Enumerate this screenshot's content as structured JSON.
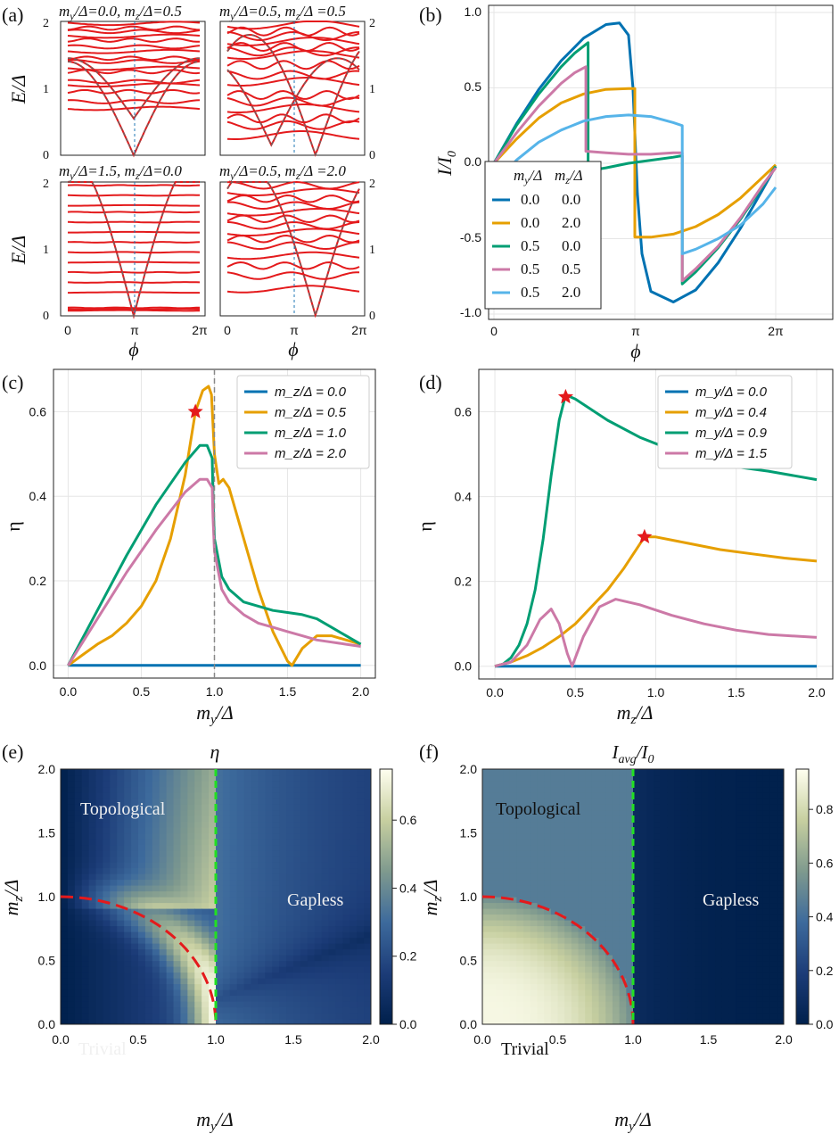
{
  "colors": {
    "c0": "#0072b2",
    "c1": "#e69f00",
    "c2": "#009e73",
    "c3": "#cc79a7",
    "c4": "#56b4e9",
    "red": "#e41a1c",
    "gray_dash": "#888888",
    "blue_dash": "#1f77b4",
    "green_dash": "#22e022"
  },
  "panels": {
    "a": {
      "letter": "(a)",
      "subplots": [
        {
          "title": "m_y/Δ=0.0, m_z/Δ=0.5"
        },
        {
          "title": "m_y/Δ=0.5, m_z/Δ =0.5"
        },
        {
          "title": "m_y/Δ=1.5, m_z/Δ=0.0"
        },
        {
          "title": "m_y/Δ=0.5, m_z/Δ =2.0"
        }
      ],
      "ylabel": "E/Δ",
      "xlabel": "ϕ",
      "xticks": [
        "0",
        "π",
        "2π"
      ],
      "yticks": [
        "0",
        "1",
        "2"
      ]
    },
    "b": {
      "letter": "(b)",
      "ylabel": "I/I0",
      "xlabel": "ϕ",
      "xticks": [
        "0",
        "π",
        "2π"
      ],
      "yticks": [
        "-1.0",
        "-0.5",
        "0.0",
        "0.5",
        "1.0"
      ],
      "legend_header": [
        "m_y/Δ",
        "m_z/Δ"
      ],
      "legend_rows": [
        [
          "0.0",
          "0.0"
        ],
        [
          "0.0",
          "2.0"
        ],
        [
          "0.5",
          "0.0"
        ],
        [
          "0.5",
          "0.5"
        ],
        [
          "0.5",
          "2.0"
        ]
      ]
    },
    "c": {
      "letter": "(c)",
      "ylabel": "η",
      "xlabel": "m_y/Δ",
      "xticks": [
        "0.0",
        "0.5",
        "1.0",
        "1.5",
        "2.0"
      ],
      "yticks": [
        "0.0",
        "0.2",
        "0.4",
        "0.6"
      ],
      "legend": [
        "m_z/Δ = 0.0",
        "m_z/Δ = 0.5",
        "m_z/Δ = 1.0",
        "m_z/Δ = 2.0"
      ]
    },
    "d": {
      "letter": "(d)",
      "ylabel": "η",
      "xlabel": "m_z/Δ",
      "xticks": [
        "0.0",
        "0.5",
        "1.0",
        "1.5",
        "2.0"
      ],
      "yticks": [
        "0.0",
        "0.2",
        "0.4",
        "0.6"
      ],
      "legend": [
        "m_y/Δ = 0.0",
        "m_y/Δ = 0.4",
        "m_y/Δ = 0.9",
        "m_y/Δ = 1.5"
      ]
    },
    "e": {
      "letter": "(e)",
      "title": "η",
      "xlabel": "m_y/Δ",
      "ylabel": "m_z/Δ",
      "xticks": [
        "0.0",
        "0.5",
        "1.0",
        "1.5",
        "2.0"
      ],
      "yticks": [
        "0.0",
        "0.5",
        "1.0",
        "1.5",
        "2.0"
      ],
      "cbar_ticks": [
        "0.0",
        "0.2",
        "0.4",
        "0.6"
      ],
      "regions": [
        "Topological",
        "Gapless",
        "Trivial"
      ]
    },
    "f": {
      "letter": "(f)",
      "title": "I_avg/I_0",
      "xlabel": "m_y/Δ",
      "ylabel": "m_z/Δ",
      "xticks": [
        "0.0",
        "0.5",
        "1.0",
        "1.5",
        "2.0"
      ],
      "yticks": [
        "0.0",
        "0.5",
        "1.0",
        "1.5",
        "2.0"
      ],
      "cbar_ticks": [
        "0.0",
        "0.2",
        "0.4",
        "0.6",
        "0.8"
      ],
      "regions": [
        "Topological",
        "Gapless",
        "Trivial"
      ]
    }
  },
  "chart_data": [
    {
      "type": "line",
      "panel": "b",
      "xlim": [
        0,
        6.2832
      ],
      "ylim": [
        -1.0,
        1.0
      ],
      "series": [
        {
          "name": "m_y/Δ 0.0, m_z/Δ 0.0",
          "color": "c0",
          "x": [
            0,
            0.5,
            1.0,
            1.5,
            2.0,
            2.5,
            2.8,
            3.0,
            3.1,
            3.2,
            3.3,
            3.5,
            4.0,
            4.5,
            5.0,
            5.5,
            6.0,
            6.2832
          ],
          "y": [
            0,
            0.26,
            0.49,
            0.68,
            0.83,
            0.92,
            0.93,
            0.85,
            0.5,
            -0.2,
            -0.6,
            -0.85,
            -0.92,
            -0.84,
            -0.66,
            -0.43,
            -0.17,
            -0.02
          ]
        },
        {
          "name": "m_y/Δ 0.0, m_z/Δ 2.0",
          "color": "c1",
          "x": [
            0,
            0.5,
            1.0,
            1.5,
            2.0,
            2.5,
            3.0,
            3.1416,
            3.1417,
            3.5,
            4.0,
            4.5,
            5.0,
            5.5,
            6.0,
            6.2832
          ],
          "y": [
            0,
            0.16,
            0.3,
            0.4,
            0.46,
            0.49,
            0.495,
            0.495,
            -0.49,
            -0.49,
            -0.47,
            -0.42,
            -0.34,
            -0.23,
            -0.09,
            -0.01
          ]
        },
        {
          "name": "m_y/Δ 0.5, m_z/Δ 0.0",
          "color": "c2",
          "x": [
            0,
            0.5,
            1.0,
            1.5,
            1.8,
            2.1,
            2.1001,
            2.5,
            3.0,
            3.5,
            4.0,
            4.2,
            4.2001,
            4.5,
            5.0,
            5.5,
            6.0,
            6.2832
          ],
          "y": [
            0,
            0.25,
            0.46,
            0.64,
            0.73,
            0.8,
            -0.05,
            -0.03,
            0.0,
            0.02,
            0.04,
            0.05,
            -0.8,
            -0.72,
            -0.56,
            -0.37,
            -0.15,
            -0.02
          ]
        },
        {
          "name": "m_y/Δ 0.5, m_z/Δ 0.5",
          "color": "c3",
          "x": [
            0,
            0.5,
            1.0,
            1.5,
            1.8,
            2.05,
            2.0501,
            2.5,
            3.0,
            3.5,
            4.0,
            4.2,
            4.2001,
            4.5,
            5.0,
            5.5,
            6.0,
            6.2832
          ],
          "y": [
            0,
            0.2,
            0.38,
            0.53,
            0.6,
            0.64,
            0.08,
            0.07,
            0.06,
            0.06,
            0.07,
            0.07,
            -0.78,
            -0.7,
            -0.55,
            -0.36,
            -0.14,
            -0.03
          ]
        },
        {
          "name": "m_y/Δ 0.5, m_z/Δ 2.0",
          "color": "c4",
          "x": [
            0,
            0.5,
            1.0,
            1.5,
            2.0,
            2.5,
            3.0,
            3.5,
            4.0,
            4.2,
            4.2001,
            4.5,
            5.0,
            5.5,
            6.0,
            6.2832
          ],
          "y": [
            -0.15,
            0.02,
            0.14,
            0.22,
            0.28,
            0.31,
            0.32,
            0.31,
            0.27,
            0.25,
            -0.6,
            -0.57,
            -0.5,
            -0.41,
            -0.27,
            -0.16
          ]
        }
      ]
    },
    {
      "type": "line",
      "panel": "c",
      "xlim": [
        -0.1,
        2.1
      ],
      "ylim": [
        -0.03,
        0.7
      ],
      "series": [
        {
          "name": "m_z/Δ = 0.0",
          "color": "c0",
          "x": [
            0,
            2.0
          ],
          "y": [
            0,
            0
          ]
        },
        {
          "name": "m_z/Δ = 0.5",
          "color": "c1",
          "x": [
            0,
            0.1,
            0.2,
            0.3,
            0.4,
            0.5,
            0.6,
            0.7,
            0.8,
            0.87,
            0.92,
            0.96,
            0.98,
            1.0,
            1.03,
            1.06,
            1.1,
            1.2,
            1.3,
            1.4,
            1.5,
            1.53,
            1.6,
            1.7,
            1.8,
            1.9,
            2.0
          ],
          "y": [
            0,
            0.025,
            0.05,
            0.07,
            0.1,
            0.14,
            0.2,
            0.3,
            0.45,
            0.6,
            0.65,
            0.66,
            0.64,
            0.5,
            0.43,
            0.44,
            0.42,
            0.3,
            0.18,
            0.08,
            0.01,
            0.0,
            0.04,
            0.07,
            0.07,
            0.06,
            0.05
          ]
        },
        {
          "name": "m_z/Δ = 1.0",
          "color": "c2",
          "x": [
            0,
            0.2,
            0.4,
            0.6,
            0.8,
            0.9,
            0.95,
            0.985,
            0.99,
            1.0,
            1.05,
            1.1,
            1.2,
            1.3,
            1.4,
            1.5,
            1.6,
            1.7,
            1.8,
            1.9,
            2.0
          ],
          "y": [
            0,
            0.13,
            0.26,
            0.38,
            0.48,
            0.52,
            0.52,
            0.49,
            0.4,
            0.3,
            0.21,
            0.18,
            0.15,
            0.14,
            0.13,
            0.125,
            0.12,
            0.11,
            0.09,
            0.07,
            0.05
          ]
        },
        {
          "name": "m_z/Δ = 2.0",
          "color": "c3",
          "x": [
            0,
            0.2,
            0.4,
            0.6,
            0.8,
            0.9,
            0.95,
            0.985,
            0.99,
            1.0,
            1.05,
            1.1,
            1.2,
            1.3,
            1.4,
            1.5,
            1.6,
            1.7,
            1.8,
            1.9,
            2.0
          ],
          "y": [
            0,
            0.11,
            0.22,
            0.32,
            0.41,
            0.44,
            0.44,
            0.42,
            0.35,
            0.27,
            0.18,
            0.15,
            0.12,
            0.1,
            0.09,
            0.08,
            0.07,
            0.06,
            0.055,
            0.05,
            0.045
          ]
        }
      ],
      "marker": {
        "x": 0.87,
        "y": 0.6,
        "shape": "star"
      },
      "vline": {
        "x": 1.0,
        "style": "dashed"
      }
    },
    {
      "type": "line",
      "panel": "d",
      "xlim": [
        -0.1,
        2.1
      ],
      "ylim": [
        -0.03,
        0.7
      ],
      "series": [
        {
          "name": "m_y/Δ = 0.0",
          "color": "c0",
          "x": [
            0,
            2.0
          ],
          "y": [
            0,
            0
          ]
        },
        {
          "name": "m_y/Δ = 0.4",
          "color": "c1",
          "x": [
            0,
            0.1,
            0.2,
            0.3,
            0.4,
            0.5,
            0.6,
            0.7,
            0.8,
            0.93,
            1.0,
            1.2,
            1.4,
            1.6,
            1.8,
            2.0
          ],
          "y": [
            0,
            0.01,
            0.025,
            0.045,
            0.07,
            0.1,
            0.14,
            0.18,
            0.23,
            0.305,
            0.305,
            0.29,
            0.275,
            0.265,
            0.255,
            0.248
          ]
        },
        {
          "name": "m_y/Δ = 0.9",
          "color": "c2",
          "x": [
            0,
            0.05,
            0.1,
            0.15,
            0.2,
            0.25,
            0.3,
            0.35,
            0.4,
            0.44,
            0.5,
            0.7,
            0.9,
            1.1,
            1.3,
            1.5,
            1.7,
            2.0
          ],
          "y": [
            0,
            0.005,
            0.02,
            0.05,
            0.1,
            0.18,
            0.3,
            0.45,
            0.58,
            0.64,
            0.63,
            0.58,
            0.54,
            0.51,
            0.49,
            0.47,
            0.46,
            0.44
          ]
        },
        {
          "name": "m_y/Δ = 1.5",
          "color": "c3",
          "x": [
            0,
            0.1,
            0.2,
            0.28,
            0.35,
            0.4,
            0.45,
            0.48,
            0.55,
            0.65,
            0.75,
            0.9,
            1.1,
            1.3,
            1.5,
            1.7,
            2.0
          ],
          "y": [
            0,
            0.01,
            0.05,
            0.11,
            0.135,
            0.1,
            0.03,
            0.0,
            0.07,
            0.14,
            0.158,
            0.145,
            0.12,
            0.1,
            0.085,
            0.075,
            0.068
          ]
        }
      ],
      "markers": [
        {
          "x": 0.44,
          "y": 0.635,
          "shape": "star"
        },
        {
          "x": 0.93,
          "y": 0.305,
          "shape": "star"
        }
      ]
    },
    {
      "type": "heatmap",
      "panel": "e",
      "title": "η",
      "xlim": [
        0,
        2.0
      ],
      "ylim": [
        0,
        2.0
      ],
      "colorbar_range": [
        0,
        0.75
      ],
      "boundary_dashed_red": "quarter circle m_y^2 + m_z^2 = 1",
      "boundary_dashed_green": {
        "x": 1.0
      }
    },
    {
      "type": "heatmap",
      "panel": "f",
      "title": "I_avg/I_0",
      "xlim": [
        0,
        2.0
      ],
      "ylim": [
        0,
        2.0
      ],
      "colorbar_range": [
        0,
        0.95
      ],
      "boundary_dashed_red": "quarter circle m_y^2 + m_z^2 = 1",
      "boundary_dashed_green": {
        "x": 1.0
      }
    }
  ]
}
